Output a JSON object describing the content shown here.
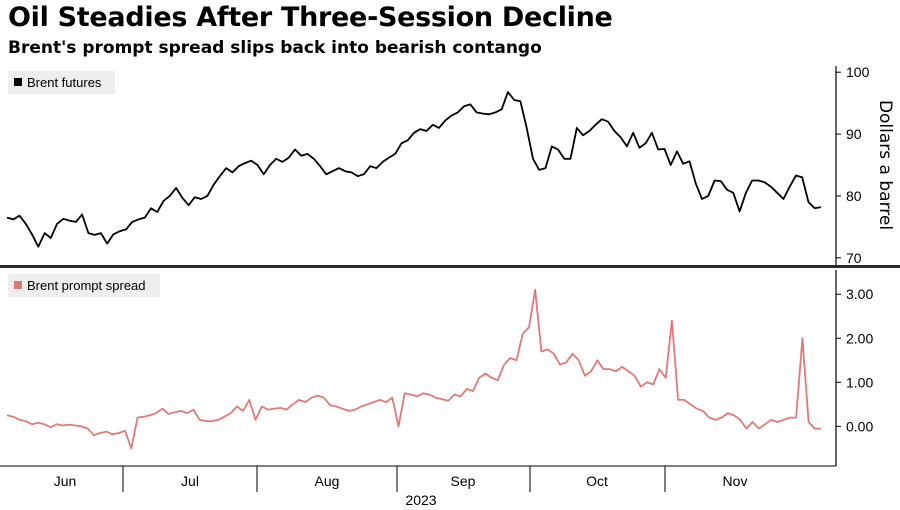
{
  "title": "Oil Steadies After Three-Session Decline",
  "subtitle": "Brent's prompt spread slips back into bearish contango",
  "chart_data": [
    {
      "type": "line",
      "series": [
        {
          "name": "Brent futures",
          "color": "#000000",
          "values": [
            76.5,
            76.2,
            76.8,
            75.5,
            73.8,
            71.8,
            74.0,
            73.2,
            75.5,
            76.3,
            76.0,
            75.8,
            77.0,
            74.0,
            73.7,
            74.0,
            72.3,
            73.8,
            74.3,
            74.6,
            75.8,
            76.2,
            76.5,
            78.0,
            77.4,
            79.2,
            80.0,
            81.3,
            79.7,
            78.5,
            79.8,
            79.5,
            80.0,
            81.8,
            83.2,
            84.5,
            83.8,
            84.8,
            85.3,
            85.7,
            85.0,
            83.5,
            85.0,
            86.0,
            85.5,
            86.2,
            87.5,
            86.5,
            86.8,
            86.0,
            84.8,
            83.5,
            84.0,
            84.5,
            84.0,
            83.8,
            83.2,
            83.5,
            84.8,
            84.5,
            85.5,
            86.2,
            86.8,
            88.5,
            89.0,
            90.2,
            90.8,
            90.5,
            91.5,
            91.0,
            92.2,
            93.0,
            93.5,
            94.5,
            94.8,
            93.5,
            93.3,
            93.2,
            93.5,
            94.0,
            96.8,
            95.5,
            95.3,
            91.0,
            86.0,
            84.2,
            84.5,
            88.0,
            87.5,
            86.0,
            86.0,
            91.0,
            89.8,
            90.5,
            91.5,
            92.4,
            92.0,
            90.5,
            89.5,
            88.0,
            90.2,
            87.8,
            88.5,
            90.2,
            87.5,
            87.6,
            85.0,
            87.2,
            85.2,
            85.6,
            82.0,
            79.5,
            80.0,
            82.5,
            82.4,
            81.0,
            80.5,
            77.5,
            80.5,
            82.5,
            82.5,
            82.2,
            81.5,
            80.5,
            79.5,
            81.5,
            83.3,
            83.0,
            79.0,
            78.0,
            78.2
          ]
        }
      ],
      "yticks": [
        70,
        80,
        90,
        100
      ],
      "ylim": [
        69,
        101
      ],
      "ylabel": "Dollars a barrel",
      "legend": "top-left"
    },
    {
      "type": "line",
      "series": [
        {
          "name": "Brent prompt spread",
          "color": "#e07a76",
          "values": [
            0.25,
            0.22,
            0.15,
            0.12,
            0.05,
            0.08,
            0.05,
            -0.02,
            0.05,
            0.02,
            0.04,
            0.02,
            0.0,
            -0.05,
            -0.2,
            -0.15,
            -0.12,
            -0.18,
            -0.15,
            -0.1,
            -0.5,
            0.2,
            0.22,
            0.25,
            0.3,
            0.4,
            0.28,
            0.32,
            0.35,
            0.3,
            0.38,
            0.15,
            0.12,
            0.12,
            0.15,
            0.22,
            0.3,
            0.45,
            0.35,
            0.6,
            0.15,
            0.45,
            0.38,
            0.4,
            0.42,
            0.38,
            0.5,
            0.6,
            0.55,
            0.65,
            0.7,
            0.65,
            0.48,
            0.45,
            0.4,
            0.35,
            0.38,
            0.45,
            0.5,
            0.55,
            0.6,
            0.55,
            0.65,
            0.0,
            0.75,
            0.72,
            0.68,
            0.75,
            0.72,
            0.65,
            0.62,
            0.58,
            0.72,
            0.68,
            0.85,
            0.8,
            1.1,
            1.2,
            1.1,
            1.05,
            1.4,
            1.55,
            1.5,
            2.1,
            2.25,
            3.1,
            1.7,
            1.75,
            1.65,
            1.4,
            1.45,
            1.65,
            1.5,
            1.15,
            1.25,
            1.5,
            1.3,
            1.3,
            1.25,
            1.35,
            1.25,
            1.15,
            0.9,
            1.0,
            0.95,
            1.3,
            1.1,
            2.4,
            0.6,
            0.6,
            0.5,
            0.4,
            0.35,
            0.2,
            0.15,
            0.2,
            0.3,
            0.25,
            0.15,
            -0.05,
            0.1,
            -0.05,
            0.05,
            0.15,
            0.1,
            0.15,
            0.2,
            0.2,
            2.0,
            0.1,
            -0.05,
            -0.05
          ]
        }
      ],
      "yticks": [
        0.0,
        1.0,
        2.0,
        3.0
      ],
      "ytick_labels": [
        "0.00",
        "1.00",
        "2.00",
        "3.00"
      ],
      "ylim": [
        -0.9,
        3.55
      ],
      "legend": "top-left",
      "x_tick_labels": [
        "Jun",
        "Jul",
        "Aug",
        "Sep",
        "Oct",
        "Nov"
      ],
      "x_group_label": "2023"
    }
  ]
}
